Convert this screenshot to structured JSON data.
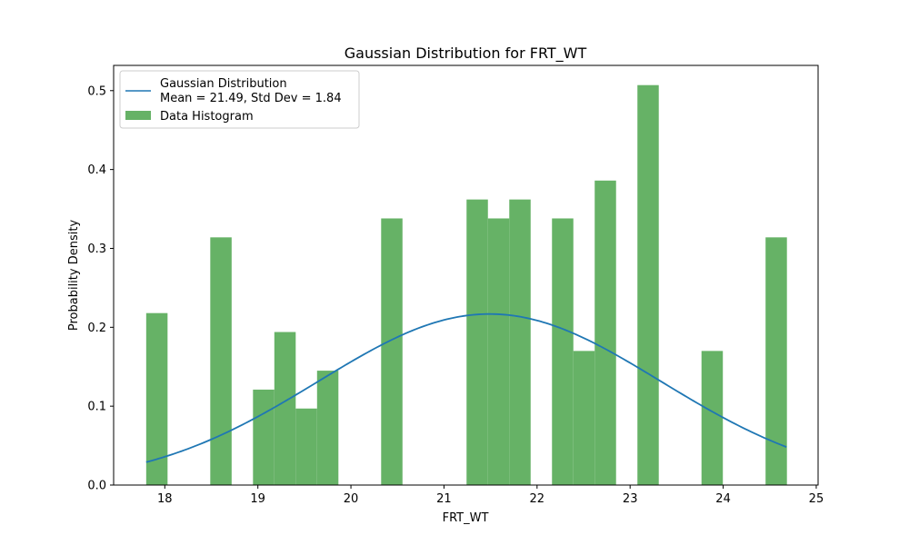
{
  "chart_data": {
    "type": "bar",
    "title": "Gaussian Distribution for FRT_WT",
    "xlabel": "FRT_WT",
    "ylabel": "Probability Density",
    "xlim": [
      17.45,
      25.02
    ],
    "ylim": [
      0,
      0.532
    ],
    "xticks": [
      18,
      19,
      20,
      21,
      22,
      23,
      24,
      25
    ],
    "yticks": [
      0.0,
      0.1,
      0.2,
      0.3,
      0.4,
      0.5
    ],
    "grid": false,
    "legend_position": "top-left",
    "histogram": {
      "name": "Data Histogram",
      "color": "#66b266",
      "bin_start": 17.8,
      "bin_width": 0.2295,
      "values": [
        0.218,
        0,
        0,
        0.314,
        0,
        0.121,
        0.194,
        0.097,
        0.145,
        0,
        0,
        0.338,
        0,
        0,
        0,
        0.362,
        0.338,
        0.362,
        0,
        0.338,
        0.17,
        0.386,
        0,
        0.507,
        0,
        0,
        0.17,
        0,
        0,
        0.314
      ]
    },
    "gaussian": {
      "name": "Gaussian Distribution\nMean = 21.49, Std Dev = 1.84",
      "label_line1": "Gaussian Distribution",
      "label_line2": "Mean = 21.49, Std Dev = 1.84",
      "color": "#1f77b4",
      "mean": 21.49,
      "std": 1.84,
      "x_range": [
        17.8,
        24.68
      ]
    }
  }
}
